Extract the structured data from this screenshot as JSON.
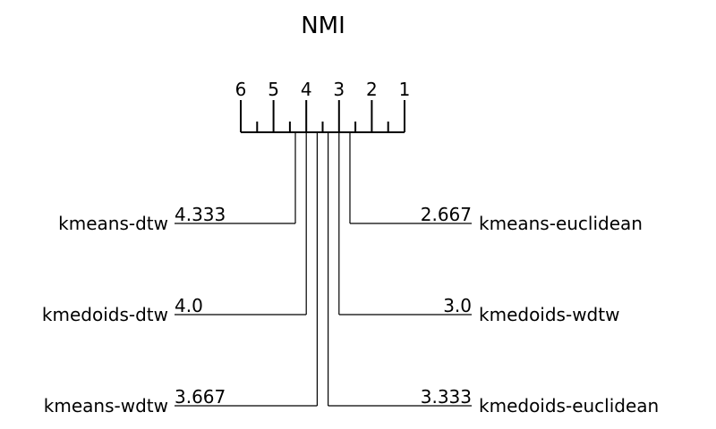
{
  "title": "NMI",
  "axis": {
    "min_rank": 1,
    "max_rank": 6,
    "tick_labels": [
      "6",
      "5",
      "4",
      "3",
      "2",
      "1"
    ]
  },
  "methods": [
    {
      "name": "kmeans-dtw",
      "rank": 4.333,
      "rank_text": "4.333",
      "side": "left"
    },
    {
      "name": "kmedoids-dtw",
      "rank": 4.0,
      "rank_text": "4.0",
      "side": "left"
    },
    {
      "name": "kmeans-wdtw",
      "rank": 3.667,
      "rank_text": "3.667",
      "side": "left"
    },
    {
      "name": "kmeans-euclidean",
      "rank": 2.667,
      "rank_text": "2.667",
      "side": "right"
    },
    {
      "name": "kmedoids-wdtw",
      "rank": 3.0,
      "rank_text": "3.0",
      "side": "right"
    },
    {
      "name": "kmedoids-euclidean",
      "rank": 3.333,
      "rank_text": "3.333",
      "side": "right"
    }
  ],
  "colors": {
    "ink": "#000000",
    "background": "#ffffff"
  }
}
